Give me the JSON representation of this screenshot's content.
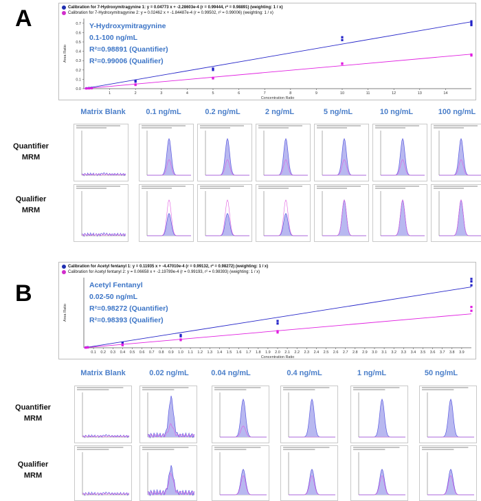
{
  "panel_a": {
    "letter": "A",
    "header_lines": [
      {
        "text": "Calibration for 7-Hydroxymitragynine 1: y = 0.04773 x + -2.28603e-4 (r = 0.99444, r² = 0.98891)  (weighting: 1 / x)",
        "color": "#1f2fb0"
      },
      {
        "text": "Calibration for 7-Hydroxymitragynine 2: y = 0.02462 x + -1.84487e-4 (r = 0.99502, r² = 0.99006)  (weighting: 1 / x)",
        "color": "#d12ccb"
      }
    ],
    "annotation": [
      "Y-Hydroxymitragynine",
      "0.1-100 ng/mL",
      "R²=0.98891 (Quantifier)",
      "R²=0.99006 (Qualifier)"
    ],
    "column_headers": [
      "Matrix Blank",
      "0.1 ng/mL",
      "0.2 ng/mL",
      "2 ng/mL",
      "5 ng/mL",
      "10 ng/mL",
      "100 ng/mL"
    ],
    "row_labels": [
      [
        "Quantifier",
        "MRM"
      ],
      [
        "Qualifier",
        "MRM"
      ]
    ]
  },
  "panel_b": {
    "letter": "B",
    "header_lines": [
      {
        "text": "Calibration for Acetyl fentanyl 1: y = 0.11935 x + -4.47010e-4 (r = 0.99132, r² = 0.98272)  (weighting: 1 / x)",
        "color": "#1f2fb0"
      },
      {
        "text": "Calibration for Acetyl fentanyl 2: y = 0.06658 x + -2.19789e-4 (r = 0.99193, r² = 0.98393)  (weighting: 1 / x)",
        "color": "#d12ccb"
      }
    ],
    "annotation": [
      "Acetyl Fentanyl",
      "0.02-50 ng/mL",
      "R²=0.98272 (Quantifier)",
      "R²=0.98393 (Qualifier)"
    ],
    "column_headers": [
      "Matrix Blank",
      "0.02 ng/mL",
      "0.04 ng/mL",
      "0.4 ng/mL",
      "1 ng/mL",
      "50 ng/mL"
    ],
    "row_labels": [
      [
        "Quantifier",
        "MRM"
      ],
      [
        "Qualifier",
        "MRM"
      ]
    ]
  },
  "colors": {
    "quantifier": "#2323c8",
    "qualifier": "#e01ee0",
    "annotation": "#3b74c6",
    "peak_fill": "#b8b8f0"
  },
  "chart_data": [
    {
      "type": "scatter",
      "title": "",
      "xlabel": "Concentration Ratio",
      "ylabel": "Area Ratio",
      "xlim": [
        0,
        15
      ],
      "ylim": [
        0,
        0.75
      ],
      "xticks": [
        1,
        2,
        3,
        4,
        5,
        6,
        7,
        8,
        9,
        10,
        11,
        12,
        13,
        14
      ],
      "yticks": [
        0.0,
        0.1,
        0.2,
        0.3,
        0.4,
        0.5,
        0.6,
        0.7
      ],
      "grid": false,
      "legend": "top-left",
      "series": [
        {
          "name": "7-Hydroxymitragynine 1",
          "x": [
            0.1,
            0.2,
            0.3,
            2,
            2,
            5,
            5,
            10,
            10,
            15,
            15,
            15
          ],
          "y": [
            0.004,
            0.006,
            0.008,
            0.075,
            0.085,
            0.2,
            0.215,
            0.52,
            0.55,
            0.68,
            0.7,
            0.72
          ],
          "fit": {
            "slope": 0.04773,
            "intercept": -0.000228603
          }
        },
        {
          "name": "7-Hydroxymitragynine 2",
          "x": [
            0.1,
            0.2,
            0.3,
            2,
            2,
            5,
            5,
            10,
            10,
            15,
            15
          ],
          "y": [
            0.002,
            0.003,
            0.004,
            0.04,
            0.045,
            0.11,
            0.115,
            0.265,
            0.27,
            0.355,
            0.365
          ],
          "fit": {
            "slope": 0.02462,
            "intercept": -0.000184487
          }
        }
      ]
    },
    {
      "type": "scatter",
      "title": "",
      "xlabel": "Concentration Ratio",
      "ylabel": "Area Ratio",
      "xlim": [
        0,
        4
      ],
      "ylim": [
        0,
        0.55
      ],
      "xticks": [
        0.1,
        0.2,
        0.3,
        0.4,
        0.5,
        0.6,
        0.7,
        0.8,
        0.9,
        1.0,
        1.1,
        1.2,
        1.3,
        1.4,
        1.5,
        1.6,
        1.7,
        1.8,
        1.9,
        2.0,
        2.1,
        2.2,
        2.3,
        2.4,
        2.5,
        2.6,
        2.7,
        2.8,
        2.9,
        3.0,
        3.1,
        3.2,
        3.3,
        3.4,
        3.5,
        3.6,
        3.7,
        3.8,
        3.9
      ],
      "grid": false,
      "legend": "top-left",
      "series": [
        {
          "name": "Acetyl fentanyl 1",
          "x": [
            0.02,
            0.04,
            0.4,
            0.4,
            1,
            1,
            2,
            2,
            4,
            4,
            4
          ],
          "y": [
            0.002,
            0.004,
            0.035,
            0.04,
            0.09,
            0.1,
            0.19,
            0.21,
            0.49,
            0.52,
            0.54
          ],
          "fit": {
            "slope": 0.11935,
            "intercept": -0.00044701
          }
        },
        {
          "name": "Acetyl fentanyl 2",
          "x": [
            0.02,
            0.04,
            0.4,
            0.4,
            1,
            1,
            2,
            2,
            4,
            4
          ],
          "y": [
            0.001,
            0.002,
            0.02,
            0.025,
            0.06,
            0.065,
            0.12,
            0.13,
            0.29,
            0.32
          ],
          "fit": {
            "slope": 0.06658,
            "intercept": -0.000219789
          }
        }
      ]
    }
  ]
}
